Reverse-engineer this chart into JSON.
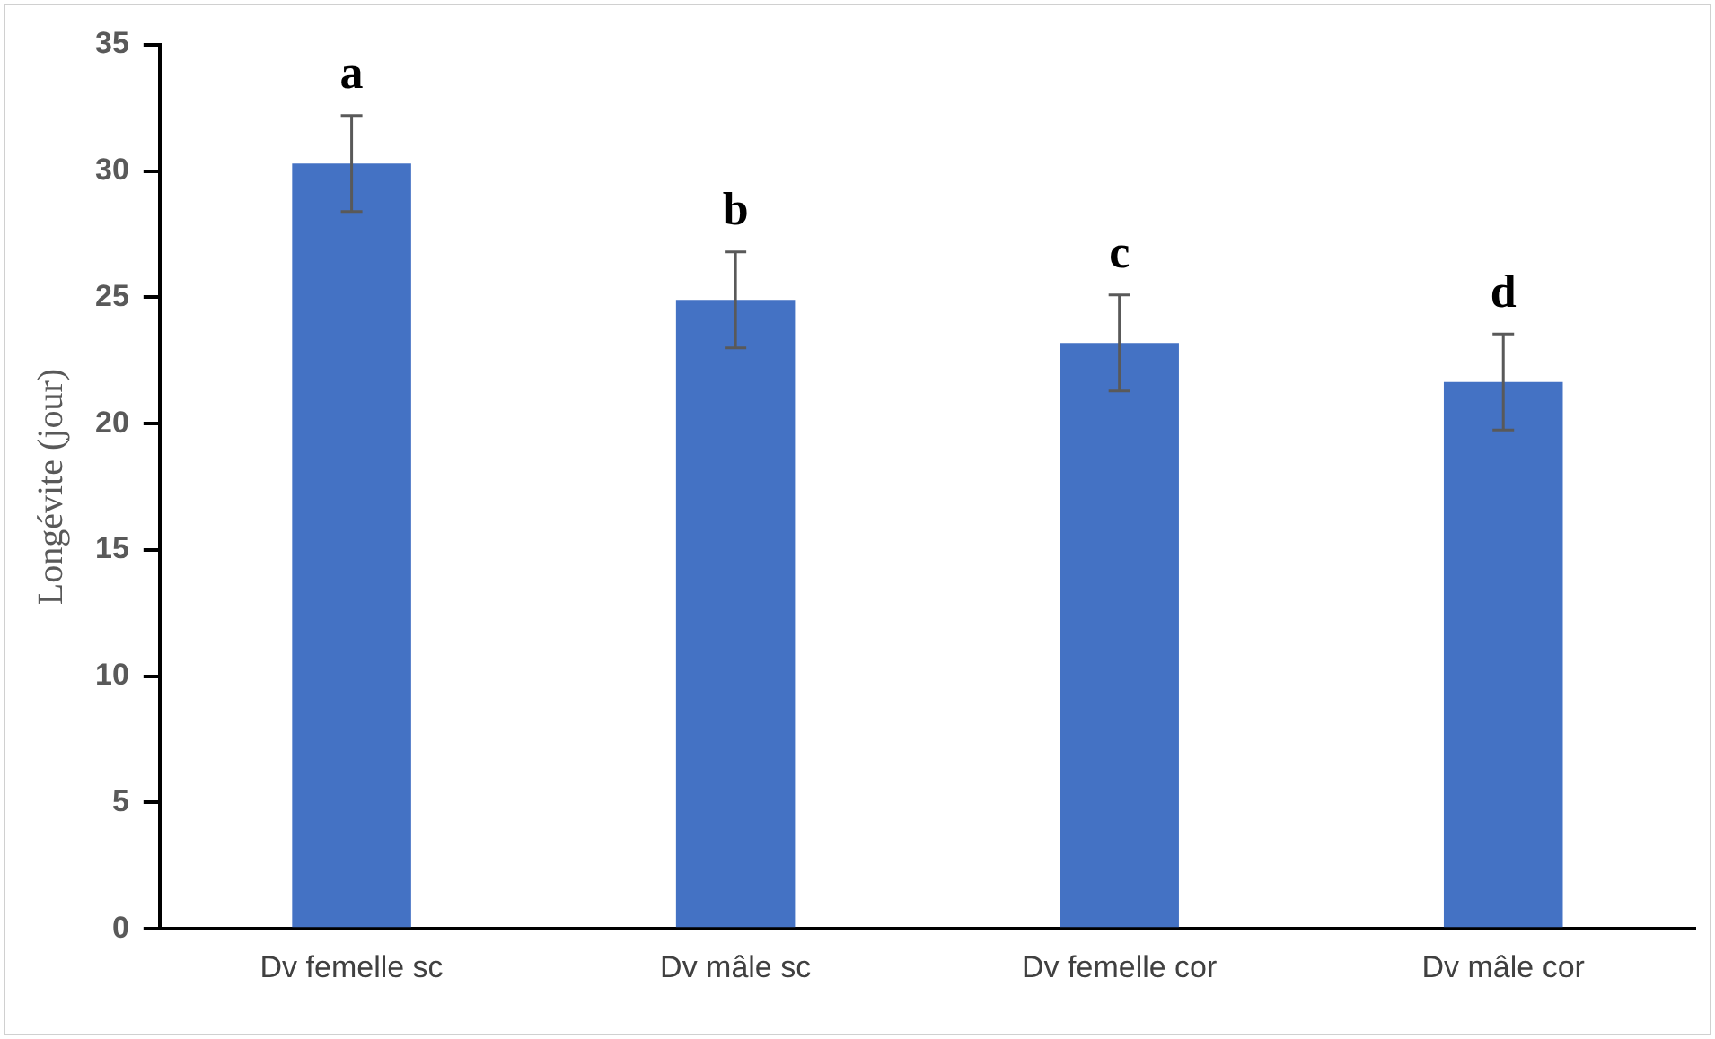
{
  "chart_data": {
    "type": "bar",
    "ylabel": "Longévite (jour)",
    "categories": [
      "Dv femelle sc",
      "Dv mâle sc",
      "Dv femelle cor",
      "Dv mâle cor"
    ],
    "values": [
      30.3,
      24.9,
      23.2,
      21.65
    ],
    "errors": [
      1.9,
      1.9,
      1.9,
      1.9
    ],
    "color": "#4472c4",
    "ylim": [
      0,
      35
    ],
    "yticks": [
      0,
      5,
      10,
      15,
      20,
      25,
      30,
      35
    ],
    "grid": false,
    "legend": false,
    "annotations": [
      "a",
      "b",
      "c",
      "d"
    ]
  }
}
